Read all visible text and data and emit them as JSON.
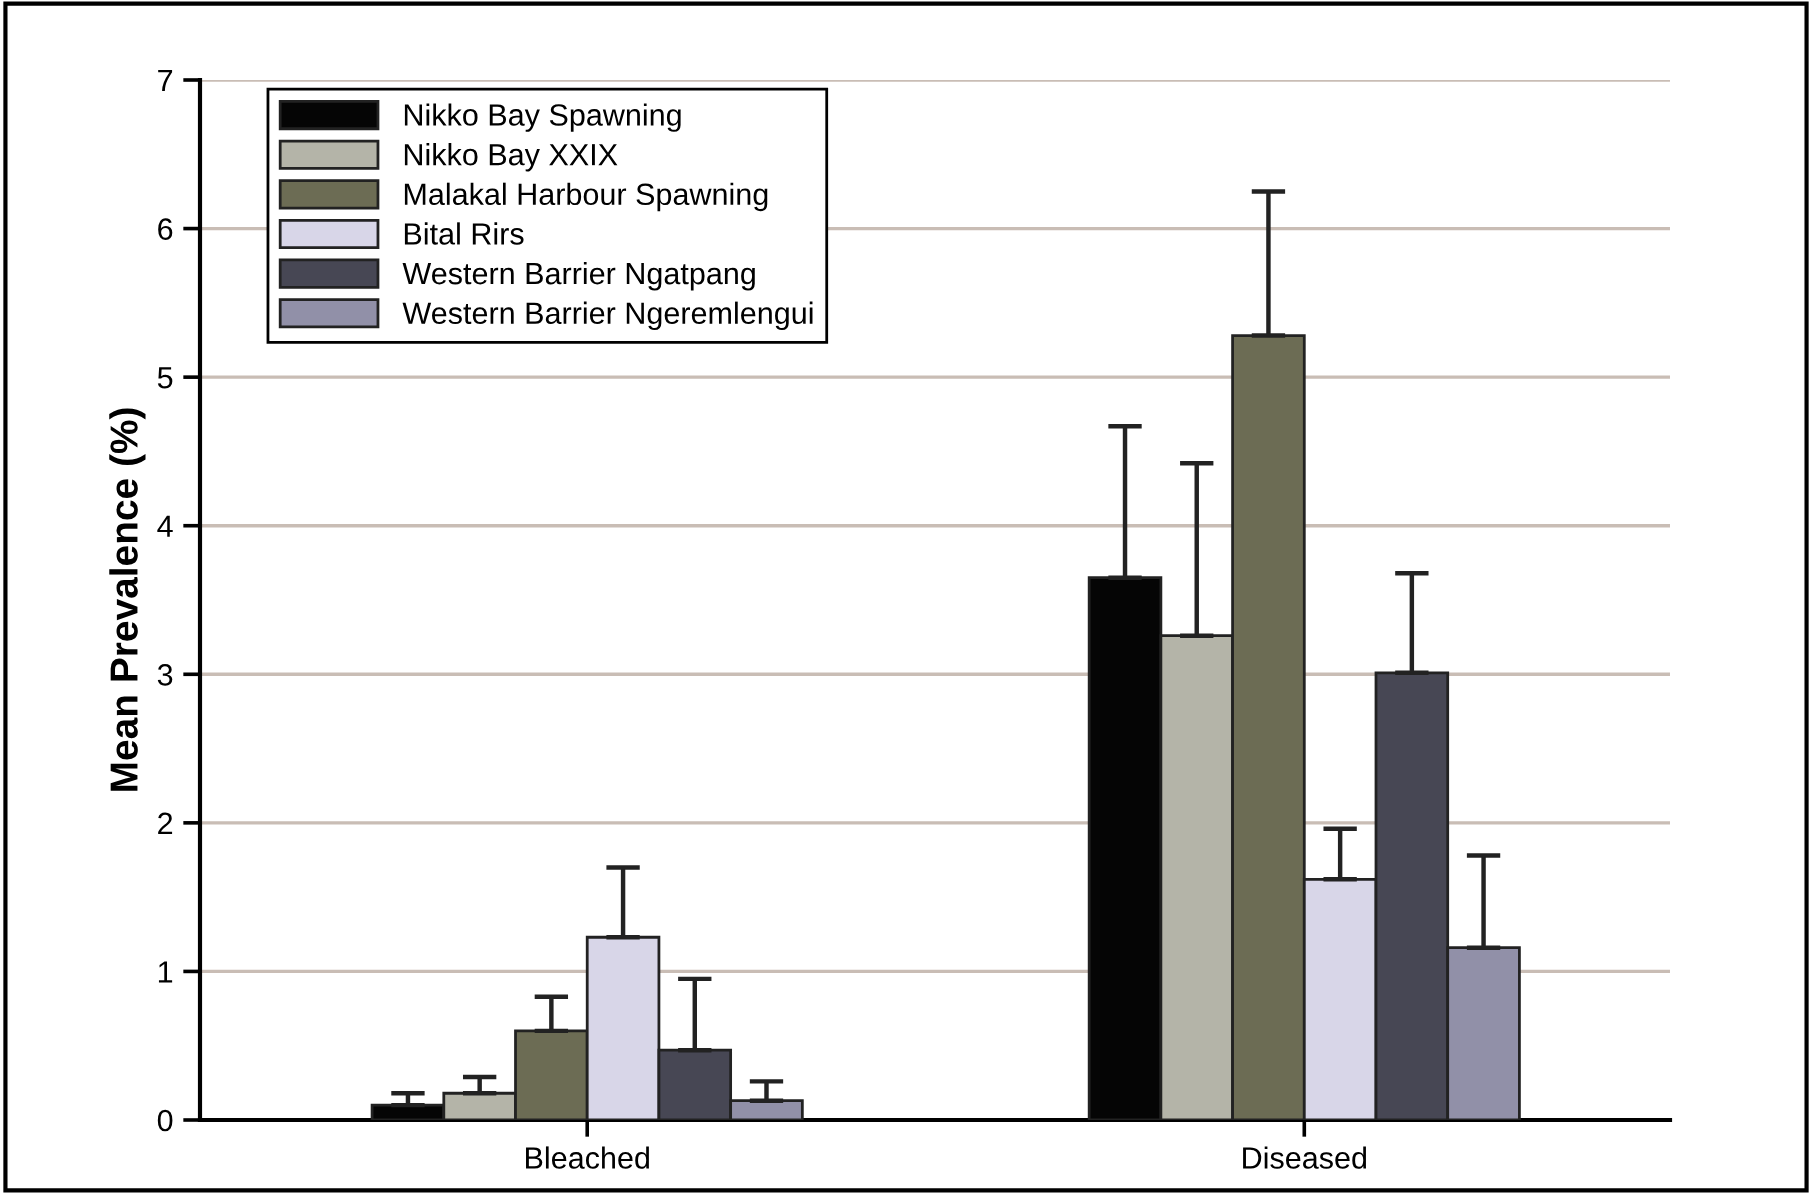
{
  "chart_data": {
    "type": "bar",
    "ylabel": "Mean Prevalence (%)",
    "categories": [
      "Bleached",
      "Diseased"
    ],
    "series": [
      {
        "name": "Nikko Bay Spawning",
        "color": "#050505",
        "values": [
          0.1,
          3.65
        ],
        "errors": [
          [
            0.1,
            0.18
          ],
          [
            3.65,
            4.67
          ]
        ]
      },
      {
        "name": "Nikko Bay XXIX",
        "color": "#b4b4a8",
        "values": [
          0.18,
          3.26
        ],
        "errors": [
          [
            0.18,
            0.29
          ],
          [
            3.26,
            4.42
          ]
        ]
      },
      {
        "name": "Malakal Harbour Spawning",
        "color": "#6c6c54",
        "values": [
          0.6,
          5.28
        ],
        "errors": [
          [
            0.6,
            0.83
          ],
          [
            5.28,
            6.25
          ]
        ]
      },
      {
        "name": "Bital Rirs",
        "color": "#d8d6e8",
        "values": [
          1.23,
          1.62
        ],
        "errors": [
          [
            1.23,
            1.7
          ],
          [
            1.62,
            1.96
          ]
        ]
      },
      {
        "name": "Western Barrier Ngatpang",
        "color": "#474754",
        "values": [
          0.47,
          3.01
        ],
        "errors": [
          [
            0.47,
            0.95
          ],
          [
            3.01,
            3.68
          ]
        ]
      },
      {
        "name": "Western Barrier Ngeremlengui",
        "color": "#9190a8",
        "values": [
          0.13,
          1.16
        ],
        "errors": [
          [
            0.13,
            0.26
          ],
          [
            1.16,
            1.78
          ]
        ]
      }
    ],
    "ylim": [
      0,
      7
    ],
    "yticks": [
      0,
      1,
      2,
      3,
      4,
      5,
      6,
      7
    ],
    "grid": "y",
    "legend": "top left"
  }
}
